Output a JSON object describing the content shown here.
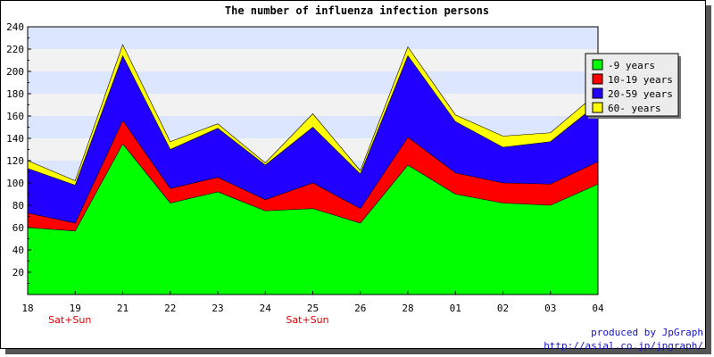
{
  "chart_data": {
    "type": "area",
    "stacked": true,
    "title": "The number of influenza infection persons",
    "xlabel": "",
    "ylabel": "",
    "ylim": [
      0,
      240
    ],
    "yticks": [
      20,
      40,
      60,
      80,
      100,
      120,
      140,
      160,
      180,
      200,
      220,
      240
    ],
    "categories": [
      "18",
      "19",
      "21",
      "22",
      "23",
      "24",
      "25",
      "26",
      "28",
      "01",
      "02",
      "03",
      "04"
    ],
    "weekend_marks": [
      {
        "category": "19",
        "text": "Sat+Sun"
      },
      {
        "category": "25",
        "text": "Sat+Sun"
      }
    ],
    "series": [
      {
        "name": "-9 years",
        "color": "#00ff00",
        "values": [
          60,
          57,
          135,
          82,
          92,
          75,
          77,
          64,
          116,
          90,
          82,
          80,
          99
        ]
      },
      {
        "name": "10-19 years",
        "color": "#ff0000",
        "values": [
          13,
          7,
          21,
          13,
          13,
          10,
          23,
          13,
          25,
          19,
          18,
          19,
          20
        ]
      },
      {
        "name": "20-59 years",
        "color": "#2200ff",
        "values": [
          40,
          34,
          58,
          35,
          44,
          31,
          50,
          31,
          73,
          46,
          32,
          38,
          52
        ]
      },
      {
        "name": "60- years",
        "color": "#ffff00",
        "values": [
          7,
          4,
          10,
          7,
          4,
          2,
          12,
          3,
          8,
          6,
          10,
          8,
          10
        ]
      }
    ],
    "legend_position": "top-right",
    "grid": "horizontal bands",
    "band_colors": [
      "#dde6ff",
      "#f2f2f2"
    ]
  },
  "credit": {
    "line1": "produced by JpGraph",
    "line2": "http://asial.co.jp/jpgraph/"
  }
}
